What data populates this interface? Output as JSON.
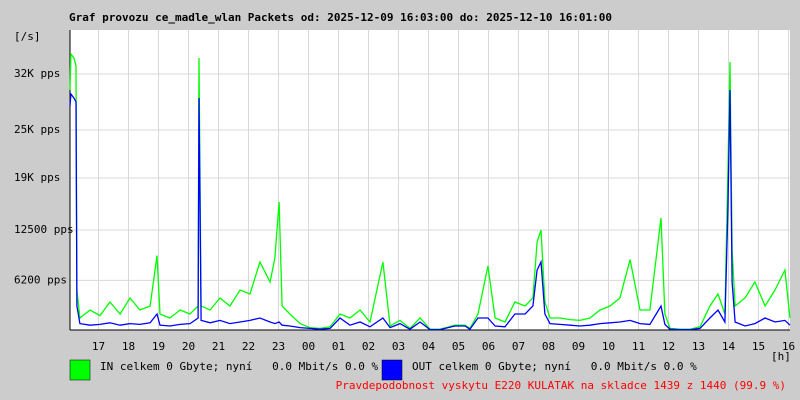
{
  "chart_data": {
    "type": "line",
    "title": "Graf provozu ce_madle_wlan Packets od: 2025-12-09 16:03:00 do: 2025-12-10 16:01:00",
    "y_unit": "[/s]",
    "x_unit": "[h]",
    "note": "Pravdepodobnost vyskytu E220 KULATAK na skladce 1439 z 1440 (99.9 %)",
    "grid": true,
    "xlim": [
      16.05,
      40.05
    ],
    "xticks": [
      {
        "value": 17,
        "label": "17"
      },
      {
        "value": 18,
        "label": "18"
      },
      {
        "value": 19,
        "label": "19"
      },
      {
        "value": 20,
        "label": "20"
      },
      {
        "value": 21,
        "label": "21"
      },
      {
        "value": 22,
        "label": "22"
      },
      {
        "value": 23,
        "label": "23"
      },
      {
        "value": 24,
        "label": "00"
      },
      {
        "value": 25,
        "label": "01"
      },
      {
        "value": 26,
        "label": "02"
      },
      {
        "value": 27,
        "label": "03"
      },
      {
        "value": 28,
        "label": "04"
      },
      {
        "value": 29,
        "label": "05"
      },
      {
        "value": 30,
        "label": "06"
      },
      {
        "value": 31,
        "label": "07"
      },
      {
        "value": 32,
        "label": "08"
      },
      {
        "value": 33,
        "label": "09"
      },
      {
        "value": 34,
        "label": "10"
      },
      {
        "value": 35,
        "label": "11"
      },
      {
        "value": 36,
        "label": "12"
      },
      {
        "value": 37,
        "label": "13"
      },
      {
        "value": 38,
        "label": "14"
      },
      {
        "value": 39,
        "label": "15"
      },
      {
        "value": 40,
        "label": "16"
      }
    ],
    "ylim": [
      0,
      37500
    ],
    "yticks": [
      {
        "value": 6200,
        "label": "6200 pps"
      },
      {
        "value": 12500,
        "label": "12500 pps"
      },
      {
        "value": 19000,
        "label": "19K pps"
      },
      {
        "value": 25000,
        "label": "25K pps"
      },
      {
        "value": 32000,
        "label": "32K pps"
      }
    ],
    "x": [
      16.05,
      16.08,
      16.18,
      16.25,
      16.28,
      16.38,
      16.72,
      17.05,
      17.38,
      17.72,
      18.05,
      18.38,
      18.72,
      18.95,
      19.05,
      19.38,
      19.72,
      20.05,
      20.32,
      20.35,
      20.42,
      20.72,
      21.05,
      21.38,
      21.72,
      22.05,
      22.38,
      22.72,
      22.88,
      23.02,
      23.12,
      23.38,
      23.72,
      24.05,
      24.38,
      24.72,
      25.05,
      25.38,
      25.72,
      26.05,
      26.48,
      26.72,
      27.05,
      27.38,
      27.72,
      28.05,
      28.38,
      28.88,
      29.22,
      29.38,
      29.65,
      29.98,
      30.22,
      30.55,
      30.88,
      31.22,
      31.48,
      31.62,
      31.75,
      31.88,
      32.05,
      32.38,
      32.72,
      33.05,
      33.38,
      33.72,
      34.05,
      34.38,
      34.72,
      35.05,
      35.38,
      35.75,
      35.88,
      36.05,
      36.38,
      36.72,
      37.05,
      37.38,
      37.65,
      37.88,
      37.98,
      38.05,
      38.12,
      38.22,
      38.55,
      38.88,
      39.22,
      39.55,
      39.88,
      40.05
    ],
    "series": [
      {
        "name": "IN celkem 0 Gbyte; nyní   0.0 Mbit/s 0.0 %",
        "color": "#00ff00",
        "values": [
          30000,
          34500,
          34000,
          33000,
          5000,
          1500,
          2500,
          1800,
          3500,
          2000,
          4000,
          2500,
          3000,
          9300,
          2000,
          1500,
          2500,
          2000,
          3000,
          34000,
          3000,
          2500,
          4000,
          3000,
          5000,
          4500,
          8500,
          6000,
          9000,
          16000,
          3000,
          2000,
          800,
          300,
          200,
          400,
          2000,
          1500,
          2500,
          1000,
          8500,
          500,
          1200,
          200,
          1500,
          100,
          100,
          600,
          600,
          200,
          2000,
          8000,
          1500,
          1000,
          3500,
          3000,
          4000,
          11000,
          12500,
          3500,
          1500,
          1500,
          1300,
          1200,
          1500,
          2500,
          3000,
          4000,
          8800,
          2500,
          2500,
          14000,
          2000,
          200,
          100,
          100,
          400,
          3000,
          4500,
          2000,
          20000,
          33500,
          10000,
          3000,
          4000,
          6000,
          3000,
          5000,
          7500,
          1500
        ]
      },
      {
        "name": "OUT celkem 0 Gbyte; nyní   0.0 Mbit/s 0.0 %",
        "color": "#0000ff",
        "values": [
          28000,
          29500,
          29000,
          28500,
          3000,
          800,
          600,
          700,
          900,
          600,
          800,
          700,
          900,
          2000,
          600,
          500,
          700,
          800,
          1500,
          29000,
          1200,
          900,
          1200,
          800,
          1000,
          1200,
          1500,
          1000,
          800,
          1000,
          600,
          500,
          300,
          200,
          100,
          200,
          1500,
          600,
          1000,
          400,
          1500,
          300,
          800,
          100,
          1000,
          50,
          50,
          500,
          500,
          100,
          1500,
          1500,
          500,
          400,
          2000,
          2000,
          3000,
          7500,
          8500,
          2000,
          800,
          700,
          600,
          500,
          600,
          800,
          900,
          1000,
          1200,
          800,
          700,
          3000,
          700,
          100,
          50,
          50,
          200,
          1500,
          2500,
          1000,
          15000,
          30000,
          6000,
          1000,
          500,
          800,
          1500,
          1000,
          1200,
          600
        ]
      }
    ]
  }
}
